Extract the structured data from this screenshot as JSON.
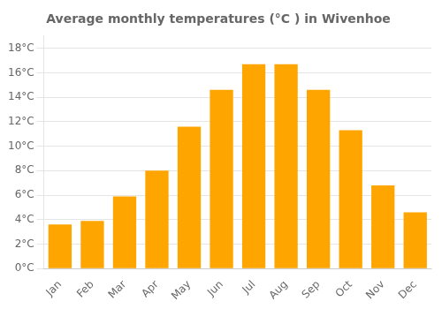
{
  "chart_data": {
    "type": "bar",
    "title": "Average monthly temperatures (°C ) in Wivenhoe",
    "categories": [
      "Jan",
      "Feb",
      "Mar",
      "Apr",
      "May",
      "Jun",
      "Jul",
      "Aug",
      "Sep",
      "Oct",
      "Nov",
      "Dec"
    ],
    "values": [
      3.6,
      3.9,
      5.9,
      8.0,
      11.6,
      14.6,
      16.7,
      16.7,
      14.6,
      11.3,
      6.8,
      4.6
    ],
    "color": "#FFA500",
    "ylim": [
      0,
      19
    ],
    "yticks": [
      {
        "value": 0,
        "label": "0°C"
      },
      {
        "value": 2,
        "label": "2°C"
      },
      {
        "value": 4,
        "label": "4°C"
      },
      {
        "value": 6,
        "label": "6°C"
      },
      {
        "value": 8,
        "label": "8°C"
      },
      {
        "value": 10,
        "label": "10°C"
      },
      {
        "value": 12,
        "label": "12°C"
      },
      {
        "value": 14,
        "label": "14°C"
      },
      {
        "value": 16,
        "label": "16°C"
      },
      {
        "value": 18,
        "label": "18°C"
      }
    ],
    "grid": true
  }
}
